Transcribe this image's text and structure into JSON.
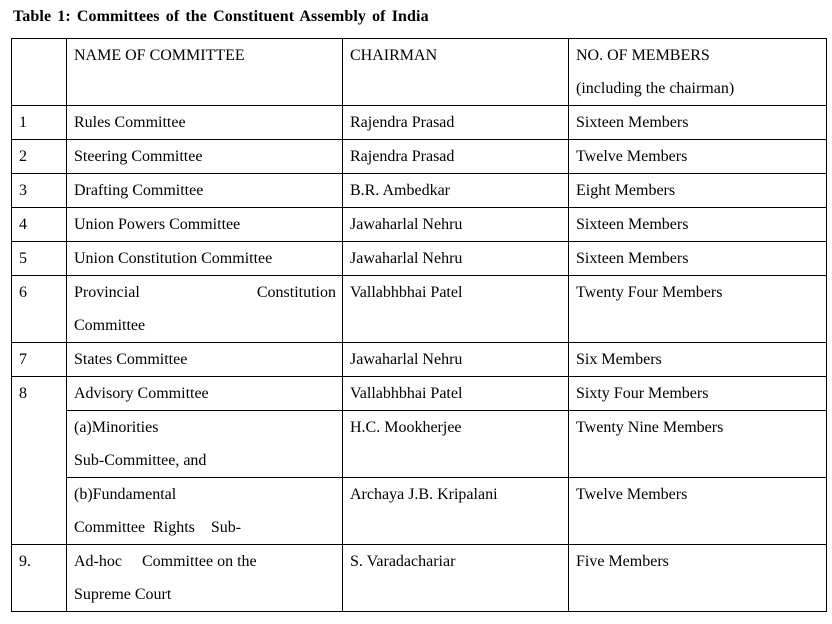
{
  "page": {
    "background": "#ffffff",
    "text_color": "#000000",
    "border_color": "#000000"
  },
  "title": "Table 1: Committees of the Constituent Assembly of India",
  "table": {
    "header": {
      "num": "",
      "name": "NAME OF COMMITTEE",
      "chairman": "CHAIRMAN",
      "members_lines": [
        "NO. OF MEMBERS",
        "(including the chairman)"
      ]
    },
    "rows": [
      {
        "num": "1",
        "name_lines": [
          "Rules Committee"
        ],
        "chairman": "Rajendra Prasad",
        "members": "Sixteen Members"
      },
      {
        "num": "2",
        "name_lines": [
          "Steering Committee"
        ],
        "chairman": "Rajendra Prasad",
        "members": "Twelve Members"
      },
      {
        "num": "3",
        "name_lines": [
          "Drafting Committee"
        ],
        "chairman": "B.R. Ambedkar",
        "members": "Eight Members"
      },
      {
        "num": "4",
        "name_lines": [
          "Union Powers Committee"
        ],
        "chairman": "Jawaharlal Nehru",
        "members": "Sixteen Members"
      },
      {
        "num": "5",
        "name_lines": [
          "Union Constitution Committee"
        ],
        "chairman": "Jawaharlal Nehru",
        "members": "Sixteen Members"
      },
      {
        "num": "6",
        "name_lines": [
          {
            "justify": true,
            "segments": [
              "Provincial",
              "Constitution"
            ]
          },
          "Committee"
        ],
        "chairman": "Vallabhbhai Patel",
        "members": "Twenty Four Members"
      },
      {
        "num": "7",
        "name_lines": [
          "States Committee"
        ],
        "chairman": "Jawaharlal Nehru",
        "members": "Six Members"
      },
      {
        "num": "8",
        "num_rowspan": 3,
        "name_lines": [
          "Advisory Committee"
        ],
        "chairman": "Vallabhbhai Patel",
        "members": "Sixty Four Members"
      },
      {
        "name_lines": [
          "(a)Minorities",
          "Sub-Committee, and"
        ],
        "chairman": "H.C. Mookherjee",
        "members": "Twenty Nine Members"
      },
      {
        "name_lines": [
          "(b)Fundamental",
          "Committee  Rights    Sub-"
        ],
        "chairman": "Archaya J.B. Kripalani",
        "members": "Twelve Members"
      },
      {
        "num": "9.",
        "name_lines": [
          "Ad-hoc     Committee on the",
          "Supreme Court"
        ],
        "chairman": "S. Varadachariar",
        "members": "Five Members"
      }
    ]
  }
}
